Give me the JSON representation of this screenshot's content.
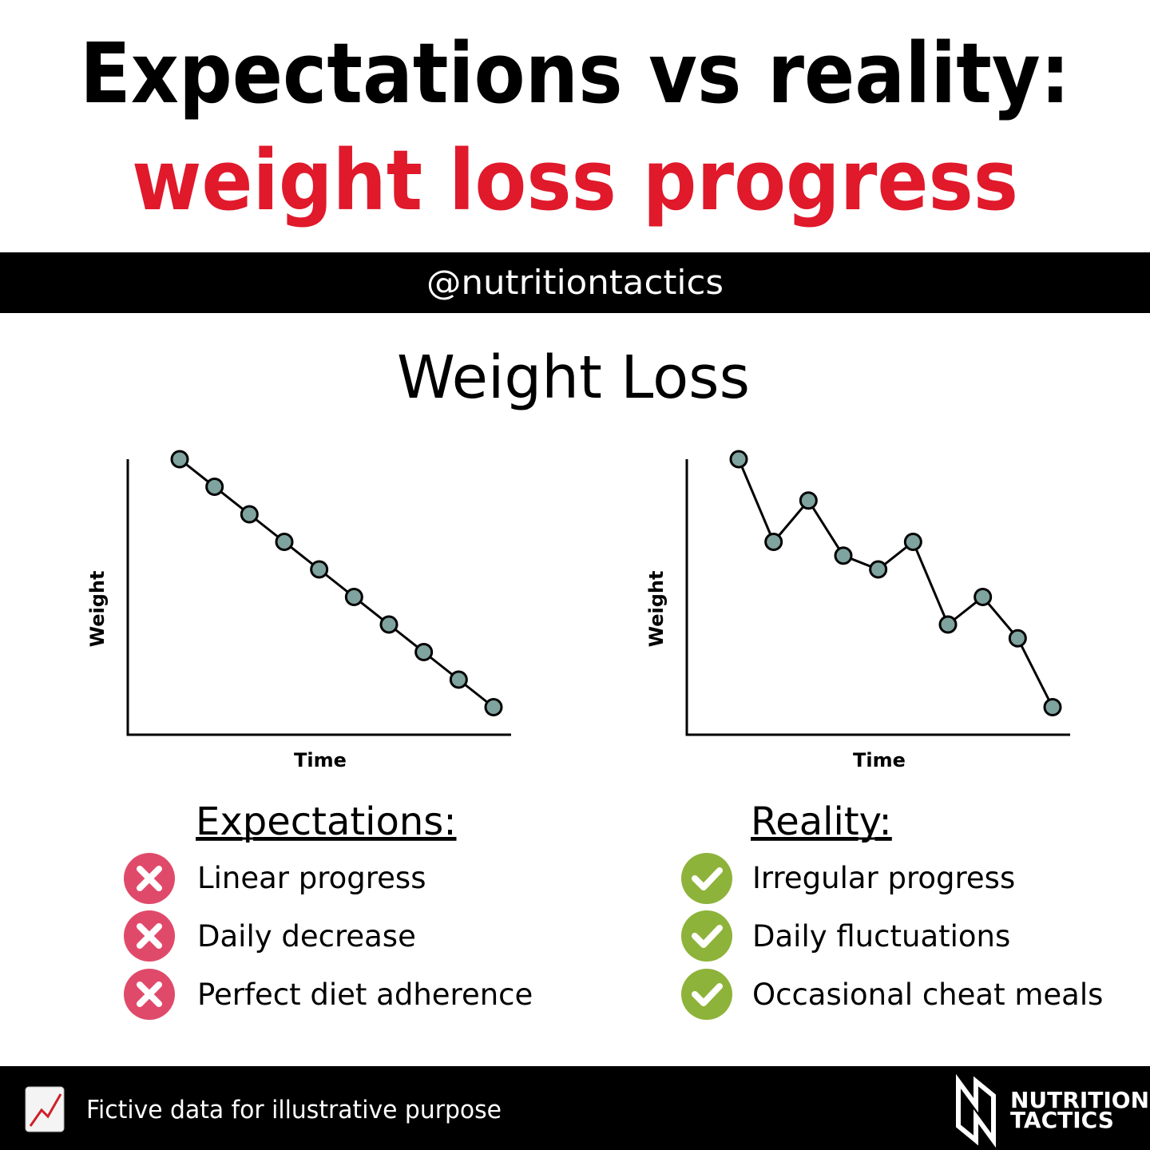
{
  "header": {
    "title": "Expectations vs reality:",
    "subtitle": "weight loss progress",
    "handle": "@nutritiontactics"
  },
  "heading": "Weight Loss",
  "chart_data": [
    {
      "type": "line",
      "xlabel": "Time",
      "ylabel": "Weight",
      "values": [
        100,
        90,
        80,
        70,
        60,
        50,
        40,
        30,
        20,
        10
      ],
      "ylim": [
        0,
        100
      ],
      "color": "#7fa39f"
    },
    {
      "type": "line",
      "xlabel": "Time",
      "ylabel": "Weight",
      "values": [
        100,
        70,
        85,
        65,
        60,
        70,
        40,
        50,
        35,
        10
      ],
      "ylim": [
        0,
        100
      ],
      "color": "#7fa39f"
    }
  ],
  "lists": [
    {
      "title": "Expectations:",
      "items": [
        "Linear progress",
        "Daily decrease",
        "Perfect diet adherence"
      ]
    },
    {
      "title": "Reality:",
      "items": [
        "Irregular progress",
        "Daily fluctuations",
        "Occasional cheat meals"
      ]
    }
  ],
  "footer": {
    "note": "Fictive data for illustrative purpose",
    "logo": [
      "NUTRITION",
      "TACTICS"
    ]
  }
}
